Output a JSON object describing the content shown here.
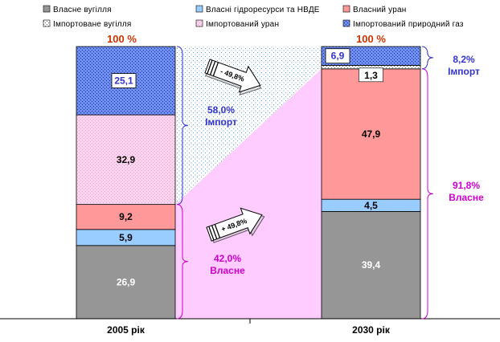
{
  "chart_data": {
    "type": "bar",
    "stacked": true,
    "categories": [
      "2005 рік",
      "2030 рік"
    ],
    "totals": [
      "100 %",
      "100 %"
    ],
    "series": [
      {
        "name": "Власне вугілля",
        "values": [
          26.9,
          39.4
        ],
        "labels": [
          "26,9",
          "39,4"
        ],
        "color": "#969696",
        "label_color": "#ffffff"
      },
      {
        "name": "Власні гідроресурси та НВДЕ",
        "values": [
          5.9,
          4.5
        ],
        "labels": [
          "5,9",
          "4,5"
        ],
        "color": "#99ccff",
        "label_color": "#000000"
      },
      {
        "name": "Власний уран",
        "values": [
          9.2,
          47.9
        ],
        "labels": [
          "9,2",
          "47,9"
        ],
        "color": "#ff9999",
        "label_color": "#000000"
      },
      {
        "name": "Імпортоване вугілля",
        "values": [
          0,
          1.3
        ],
        "labels": [
          "",
          "1,3"
        ],
        "color": "#ffffff",
        "label_color": "#000000"
      },
      {
        "name": "Імпортований уран",
        "values": [
          32.9,
          0
        ],
        "labels": [
          "32,9",
          ""
        ],
        "color": "#ffccee",
        "label_color": "#000000"
      },
      {
        "name": "Імпортований природний газ",
        "values": [
          25.1,
          6.9
        ],
        "labels": [
          "25,1",
          "6,9"
        ],
        "color": "#6699ff",
        "label_color": "#3333cc"
      }
    ],
    "ylim": [
      0,
      100
    ],
    "annotations": {
      "import_2005": {
        "pct": "58,0%",
        "label": "Імпорт",
        "color": "#3333cc"
      },
      "own_2005": {
        "pct": "42,0%",
        "label": "Власне",
        "color": "#cc00cc"
      },
      "import_2030": {
        "pct": "8,2%",
        "label": "Імпорт",
        "color": "#3333cc"
      },
      "own_2030": {
        "pct": "91,8%",
        "label": "Власне",
        "color": "#cc00cc"
      },
      "arrow_down": "- 49,8%",
      "arrow_up": "+ 49,8%"
    }
  }
}
